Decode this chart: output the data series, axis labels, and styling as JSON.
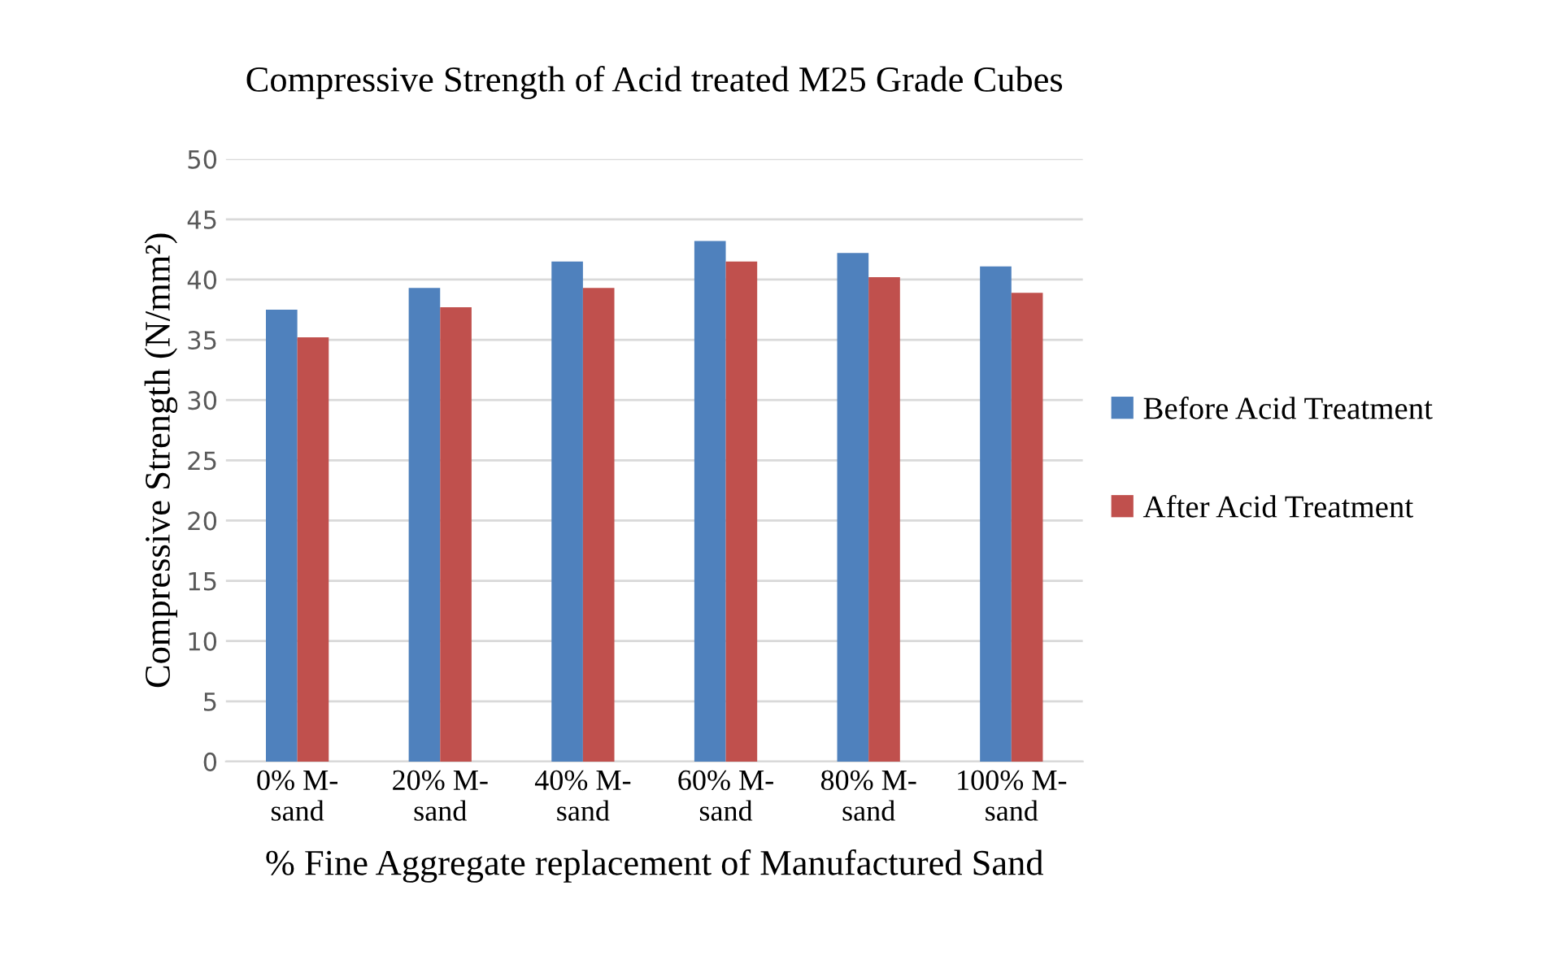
{
  "chart_data": {
    "type": "bar",
    "title": "Compressive Strength of Acid treated M25 Grade Cubes",
    "xlabel": "% Fine Aggregate replacement of Manufactured Sand",
    "ylabel": "Compressive Strength (N/mm²)",
    "categories": [
      "0% M-\nsand",
      "20% M-\nsand",
      "40% M-\nsand",
      "60% M-\nsand",
      "80% M-\nsand",
      "100% M-\nsand"
    ],
    "series": [
      {
        "name": "Before Acid Treatment",
        "color": "#4f81bd",
        "values": [
          37.5,
          39.3,
          41.5,
          43.2,
          42.2,
          41.1
        ]
      },
      {
        "name": "After Acid Treatment",
        "color": "#c0504d",
        "values": [
          35.2,
          37.7,
          39.3,
          41.5,
          40.2,
          38.9
        ]
      }
    ],
    "ylim": [
      0,
      50
    ],
    "yticks": [
      0,
      5,
      10,
      15,
      20,
      25,
      30,
      35,
      40,
      45,
      50
    ],
    "grid": "y",
    "legend": "right"
  }
}
